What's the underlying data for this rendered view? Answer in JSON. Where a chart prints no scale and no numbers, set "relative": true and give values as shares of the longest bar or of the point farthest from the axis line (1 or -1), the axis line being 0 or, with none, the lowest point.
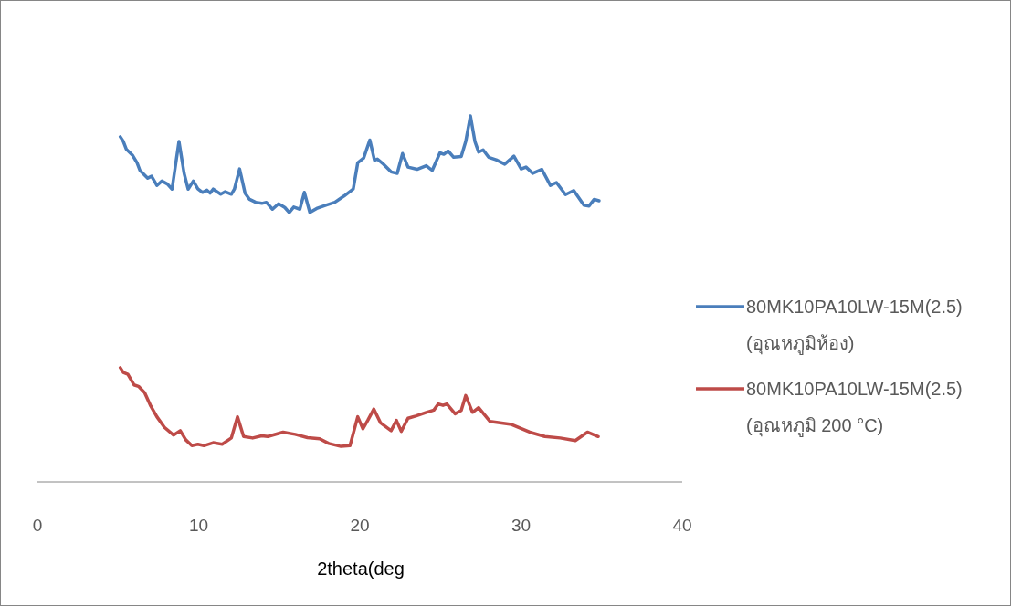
{
  "chart_data": {
    "type": "line",
    "xlabel": "2theta(deg",
    "xlim": [
      0,
      40
    ],
    "xticks": [
      0,
      10,
      20,
      30,
      40
    ],
    "relative": true,
    "legend": "right",
    "tick_labels": "x",
    "series": [
      {
        "name": "80MK10PA10LW-15M(2.5) (อุณหภูมิห้อง)",
        "color": "#4a7ebb",
        "x": [
          5.14,
          5.33,
          5.51,
          5.89,
          6.18,
          6.36,
          6.84,
          7.08,
          7.41,
          7.72,
          8.06,
          8.35,
          8.78,
          9.1,
          9.35,
          9.67,
          9.95,
          10.24,
          10.52,
          10.71,
          10.9,
          11.37,
          11.65,
          12.03,
          12.22,
          12.54,
          12.88,
          13.16,
          13.54,
          13.92,
          14.2,
          14.58,
          14.96,
          15.34,
          15.62,
          15.9,
          16.28,
          16.56,
          16.9,
          17.32,
          17.89,
          18.45,
          19.02,
          19.59,
          19.87,
          20.24,
          20.62,
          20.91,
          21.09,
          21.47,
          21.94,
          22.32,
          22.65,
          22.99,
          23.55,
          24.12,
          24.49,
          24.97,
          25.21,
          25.48,
          25.82,
          26.29,
          26.57,
          26.86,
          27.14,
          27.37,
          27.65,
          27.99,
          28.46,
          28.99,
          29.56,
          30.01,
          30.31,
          30.73,
          31.29,
          31.82,
          32.2,
          32.76,
          33.27,
          33.9,
          34.22,
          34.54,
          34.84
        ],
        "values": [
          0.943,
          0.93,
          0.909,
          0.893,
          0.872,
          0.851,
          0.83,
          0.835,
          0.81,
          0.822,
          0.814,
          0.8,
          0.93,
          0.843,
          0.8,
          0.822,
          0.801,
          0.791,
          0.797,
          0.789,
          0.8,
          0.786,
          0.793,
          0.786,
          0.8,
          0.855,
          0.789,
          0.772,
          0.764,
          0.761,
          0.764,
          0.745,
          0.76,
          0.75,
          0.736,
          0.751,
          0.745,
          0.791,
          0.736,
          0.747,
          0.756,
          0.764,
          0.781,
          0.8,
          0.872,
          0.885,
          0.934,
          0.879,
          0.882,
          0.868,
          0.847,
          0.843,
          0.897,
          0.86,
          0.854,
          0.864,
          0.851,
          0.899,
          0.895,
          0.904,
          0.887,
          0.889,
          0.93,
          1,
          0.93,
          0.901,
          0.907,
          0.887,
          0.88,
          0.868,
          0.89,
          0.855,
          0.86,
          0.843,
          0.854,
          0.81,
          0.818,
          0.785,
          0.796,
          0.756,
          0.754,
          0.772,
          0.768
        ]
      },
      {
        "name": "80MK10PA10LW-15M(2.5) (อุณหภูมิ 200 °C)",
        "color": "#be4b48",
        "x": [
          5.14,
          5.33,
          5.61,
          5.99,
          6.27,
          6.65,
          7.03,
          7.41,
          7.88,
          8.44,
          8.86,
          9.2,
          9.58,
          9.95,
          10.33,
          10.9,
          11.46,
          12.03,
          12.41,
          12.79,
          13.35,
          13.92,
          14.29,
          15.24,
          15.99,
          16.75,
          17.51,
          18.07,
          18.83,
          19.39,
          19.87,
          20.19,
          20.49,
          20.87,
          21.29,
          21.94,
          22.27,
          22.57,
          22.99,
          23.46,
          24.12,
          24.59,
          24.87,
          25.16,
          25.4,
          25.91,
          26.29,
          26.57,
          26.99,
          27.37,
          28.08,
          29.41,
          30.54,
          31.48,
          32.43,
          33.37,
          34.12,
          34.79
        ],
        "values": [
          0.312,
          0.299,
          0.294,
          0.265,
          0.261,
          0.244,
          0.207,
          0.178,
          0.149,
          0.128,
          0.14,
          0.115,
          0.099,
          0.103,
          0.099,
          0.107,
          0.103,
          0.12,
          0.178,
          0.124,
          0.12,
          0.126,
          0.124,
          0.136,
          0.13,
          0.121,
          0.118,
          0.105,
          0.097,
          0.099,
          0.178,
          0.145,
          0.168,
          0.199,
          0.161,
          0.14,
          0.168,
          0.138,
          0.174,
          0.18,
          0.19,
          0.196,
          0.213,
          0.209,
          0.213,
          0.186,
          0.195,
          0.236,
          0.19,
          0.203,
          0.165,
          0.157,
          0.136,
          0.124,
          0.12,
          0.113,
          0.136,
          0.124
        ]
      }
    ]
  }
}
